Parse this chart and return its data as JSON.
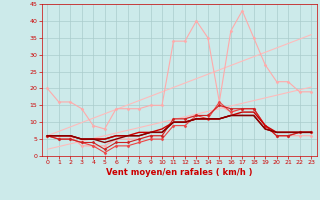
{
  "x": [
    0,
    1,
    2,
    3,
    4,
    5,
    6,
    7,
    8,
    9,
    10,
    11,
    12,
    13,
    14,
    15,
    16,
    17,
    18,
    19,
    20,
    21,
    22,
    23
  ],
  "series": [
    {
      "color": "#ffbbbb",
      "marker": null,
      "markersize": 0,
      "linewidth": 0.8,
      "y": [
        6,
        7.3,
        8.6,
        9.9,
        11.2,
        12.5,
        13.8,
        15.1,
        16.4,
        17.7,
        19.0,
        20.3,
        21.6,
        22.9,
        24.2,
        25.5,
        26.8,
        28.1,
        29.4,
        30.7,
        32.0,
        33.3,
        34.6,
        35.9
      ]
    },
    {
      "color": "#ffbbbb",
      "marker": null,
      "markersize": 0,
      "linewidth": 0.8,
      "y": [
        2,
        2.8,
        3.6,
        4.4,
        5.2,
        6.0,
        6.8,
        7.6,
        8.4,
        9.2,
        10.0,
        10.8,
        11.6,
        12.4,
        13.2,
        14.0,
        14.8,
        15.6,
        16.4,
        17.2,
        18.0,
        18.8,
        19.6,
        20.4
      ]
    },
    {
      "color": "#ffaaaa",
      "marker": "D",
      "markersize": 1.5,
      "linewidth": 0.8,
      "y": [
        20,
        16,
        16,
        14,
        9,
        8,
        14,
        14,
        14,
        15,
        15,
        34,
        34,
        40,
        35,
        16,
        37,
        43,
        35,
        27,
        22,
        22,
        19,
        19
      ]
    },
    {
      "color": "#ffaaaa",
      "marker": "D",
      "markersize": 1.5,
      "linewidth": 0.8,
      "y": [
        6,
        6,
        6,
        3,
        3,
        3,
        5,
        5,
        5,
        6,
        6,
        11,
        11,
        12,
        12,
        15,
        13,
        14,
        14,
        9,
        6,
        6,
        6,
        6
      ]
    },
    {
      "color": "#ee4444",
      "marker": "D",
      "markersize": 1.5,
      "linewidth": 0.8,
      "y": [
        6,
        5,
        5,
        4,
        3,
        1,
        3,
        3,
        4,
        5,
        5,
        9,
        9,
        12,
        11,
        16,
        13,
        14,
        14,
        9,
        6,
        6,
        7,
        7
      ]
    },
    {
      "color": "#cc2222",
      "marker": "D",
      "markersize": 1.5,
      "linewidth": 0.8,
      "y": [
        6,
        5,
        5,
        4,
        4,
        2,
        4,
        4,
        5,
        6,
        6,
        11,
        11,
        12,
        12,
        15,
        14,
        14,
        14,
        9,
        6,
        6,
        7,
        7
      ]
    },
    {
      "color": "#cc0000",
      "marker": null,
      "markersize": 0,
      "linewidth": 1.0,
      "y": [
        6,
        6,
        6,
        5,
        5,
        5,
        6,
        6,
        7,
        7,
        8,
        10,
        10,
        11,
        11,
        11,
        12,
        13,
        13,
        9,
        7,
        7,
        7,
        7
      ]
    },
    {
      "color": "#aa0000",
      "marker": null,
      "markersize": 0,
      "linewidth": 1.0,
      "y": [
        6,
        6,
        6,
        5,
        5,
        5,
        6,
        6,
        6,
        7,
        7,
        10,
        10,
        11,
        11,
        11,
        12,
        12,
        12,
        8,
        7,
        7,
        7,
        7
      ]
    },
    {
      "color": "#880000",
      "marker": null,
      "markersize": 0,
      "linewidth": 1.0,
      "y": [
        6,
        6,
        6,
        5,
        5,
        4,
        5,
        6,
        6,
        7,
        7,
        10,
        10,
        11,
        11,
        11,
        12,
        12,
        12,
        8,
        7,
        7,
        7,
        7
      ]
    }
  ],
  "xlim": [
    -0.5,
    23.5
  ],
  "ylim": [
    0,
    45
  ],
  "yticks": [
    0,
    5,
    10,
    15,
    20,
    25,
    30,
    35,
    40,
    45
  ],
  "xticks": [
    0,
    1,
    2,
    3,
    4,
    5,
    6,
    7,
    8,
    9,
    10,
    11,
    12,
    13,
    14,
    15,
    16,
    17,
    18,
    19,
    20,
    21,
    22,
    23
  ],
  "xlabel": "Vent moyen/en rafales ( km/h )",
  "background_color": "#cceaea",
  "grid_color": "#aacccc",
  "tick_color": "#cc0000",
  "label_color": "#cc0000"
}
